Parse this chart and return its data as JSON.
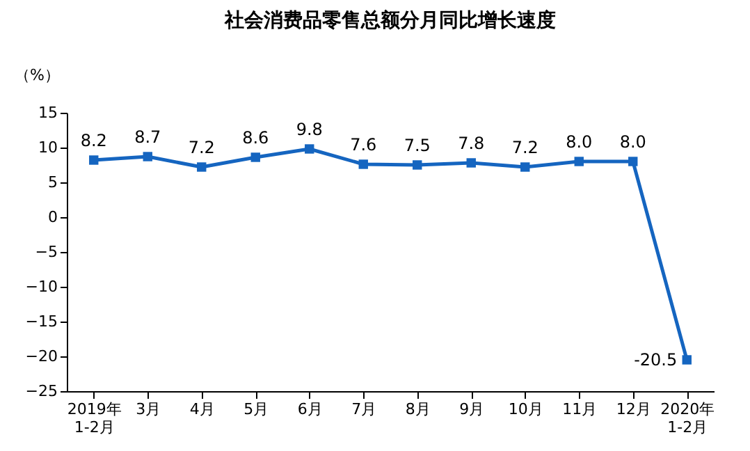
{
  "chart_data": {
    "type": "line",
    "title": "社会消费品零售总额分月同比增长速度",
    "ylabel": "（%）",
    "categories": [
      "2019年\n1-2月",
      "3月",
      "4月",
      "5月",
      "6月",
      "7月",
      "8月",
      "9月",
      "10月",
      "11月",
      "12月",
      "2020年\n1-2月"
    ],
    "series": [
      {
        "color": "#1565c0",
        "values": [
          8.2,
          8.7,
          7.2,
          8.6,
          9.8,
          7.6,
          7.5,
          7.8,
          7.2,
          8.0,
          8.0,
          -20.5
        ],
        "value_labels": [
          "8.2",
          "8.7",
          "7.2",
          "8.6",
          "9.8",
          "7.6",
          "7.5",
          "7.8",
          "7.2",
          "8.0",
          "8.0",
          "-20.5"
        ]
      }
    ],
    "ylim": [
      -25,
      15
    ],
    "yticks": [
      -25,
      -20,
      -15,
      -10,
      -5,
      0,
      5,
      10,
      15
    ],
    "marker": "square",
    "grid": false
  }
}
